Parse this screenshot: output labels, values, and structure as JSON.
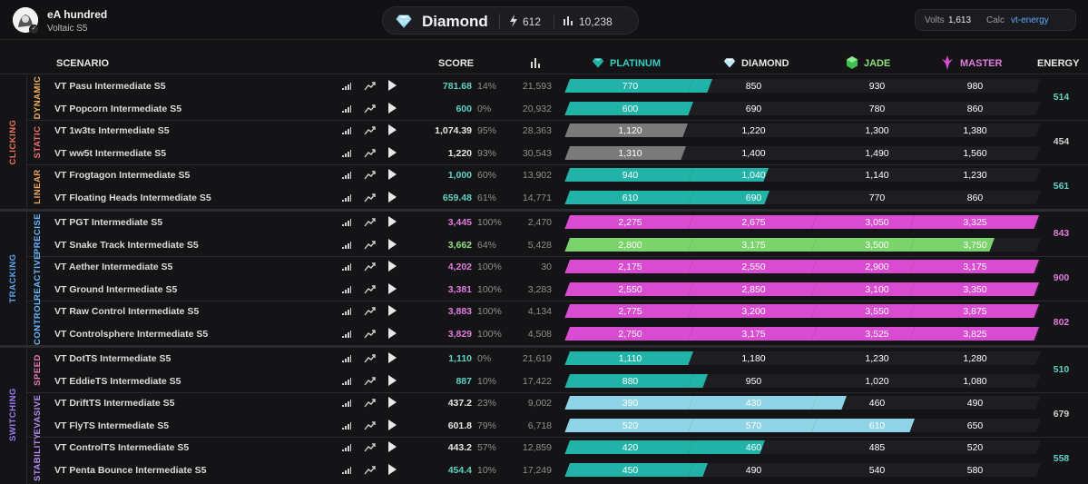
{
  "user": {
    "name": "eA hundred",
    "subtitle": "Voltaic S5"
  },
  "rank": {
    "name": "Diamond",
    "energy": "612",
    "score": "10,238"
  },
  "volts": {
    "label": "Volts",
    "value": "1,613",
    "calc_label": "Calc",
    "calc_value": "vt-energy"
  },
  "headers": {
    "scenario": "SCENARIO",
    "score": "SCORE",
    "platinum": "PLATINUM",
    "diamond": "DIAMOND",
    "jade": "JADE",
    "master": "MASTER",
    "energy": "ENERGY"
  },
  "colors": {
    "platinum": "#22b3a8",
    "diamond": "#8fd4e6",
    "jade": "#7bd36b",
    "master": "#d94bd0",
    "clicking": "#e8705a",
    "tracking": "#5aa0e8",
    "switching": "#9a7cf0",
    "grey": "#7a7a7a"
  },
  "categories": [
    {
      "name": "CLICKING",
      "color": "#e8705a",
      "subs": [
        {
          "name": "DYNAMIC",
          "color": "#f0b05a",
          "energy": "514",
          "energy_color": "#5ed1c4"
        },
        {
          "name": "STATIC",
          "color": "#ef6e6e",
          "energy": "454",
          "energy_color": "#cfcfcf"
        },
        {
          "name": "LINEAR",
          "color": "#f0a45a",
          "energy": "561",
          "energy_color": "#5ed1c4"
        }
      ]
    },
    {
      "name": "TRACKING",
      "color": "#5aa0e8",
      "subs": [
        {
          "name": "PRECISE",
          "color": "#66b8ff",
          "energy": "843",
          "energy_color": "#e27ae0"
        },
        {
          "name": "REACTIVE",
          "color": "#66b8ff",
          "energy": "900",
          "energy_color": "#e27ae0"
        },
        {
          "name": "CONTROL",
          "color": "#66b8ff",
          "energy": "802",
          "energy_color": "#e27ae0"
        }
      ]
    },
    {
      "name": "SWITCHING",
      "color": "#9a7cf0",
      "subs": [
        {
          "name": "SPEED",
          "color": "#e77ab5",
          "energy": "510",
          "energy_color": "#5ed1c4"
        },
        {
          "name": "EVASIVE",
          "color": "#b48cf0",
          "energy": "679",
          "energy_color": "#cfcfcf"
        },
        {
          "name": "STABILITY",
          "color": "#b48cf0",
          "energy": "558",
          "energy_color": "#5ed1c4"
        }
      ]
    }
  ],
  "rows": [
    {
      "name": "VT Pasu Intermediate S5",
      "score": "781.68",
      "pct": "14%",
      "count": "21,593",
      "score_color": "#5ed1c4",
      "fill": 1.14,
      "fill_color": "#22b3a8",
      "th": [
        "770",
        "850",
        "930",
        "980"
      ]
    },
    {
      "name": "VT Popcorn Intermediate S5",
      "score": "600",
      "pct": "0%",
      "count": "20,932",
      "score_color": "#5ed1c4",
      "fill": 1.0,
      "fill_color": "#22b3a8",
      "th": [
        "600",
        "690",
        "780",
        "860"
      ]
    },
    {
      "name": "VT 1w3ts Intermediate S5",
      "score": "1,074.39",
      "pct": "95%",
      "count": "28,363",
      "score_color": "#e6e6e6",
      "fill": 0.95,
      "fill_color": "#7a7a7a",
      "th": [
        "1,120",
        "1,220",
        "1,300",
        "1,380"
      ]
    },
    {
      "name": "VT ww5t Intermediate S5",
      "score": "1,220",
      "pct": "93%",
      "count": "30,543",
      "score_color": "#e6e6e6",
      "fill": 0.93,
      "fill_color": "#7a7a7a",
      "th": [
        "1,310",
        "1,400",
        "1,490",
        "1,560"
      ]
    },
    {
      "name": "VT Frogtagon Intermediate S5",
      "score": "1,000",
      "pct": "60%",
      "count": "13,902",
      "score_color": "#5ed1c4",
      "fill": 1.6,
      "fill_color": "#22b3a8",
      "th": [
        "940",
        "1,040",
        "1,140",
        "1,230"
      ]
    },
    {
      "name": "VT Floating Heads Intermediate S5",
      "score": "659.48",
      "pct": "61%",
      "count": "14,771",
      "score_color": "#5ed1c4",
      "fill": 1.61,
      "fill_color": "#22b3a8",
      "th": [
        "610",
        "690",
        "770",
        "860"
      ]
    },
    {
      "name": "VT PGT Intermediate S5",
      "score": "3,445",
      "pct": "100%",
      "count": "2,470",
      "score_color": "#e27ae0",
      "fill": 4.0,
      "fill_color": "#d94bd0",
      "th": [
        "2,275",
        "2,675",
        "3,050",
        "3,325"
      ]
    },
    {
      "name": "VT Snake Track Intermediate S5",
      "score": "3,662",
      "pct": "64%",
      "count": "5,428",
      "score_color": "#8fe07e",
      "fill": 3.64,
      "fill_color": "#7bd36b",
      "th": [
        "2,800",
        "3,175",
        "3,500",
        "3,750"
      ]
    },
    {
      "name": "VT Aether Intermediate S5",
      "score": "4,202",
      "pct": "100%",
      "count": "30",
      "score_color": "#e27ae0",
      "fill": 4.0,
      "fill_color": "#d94bd0",
      "th": [
        "2,175",
        "2,550",
        "2,900",
        "3,175"
      ]
    },
    {
      "name": "VT Ground Intermediate S5",
      "score": "3,381",
      "pct": "100%",
      "count": "3,283",
      "score_color": "#e27ae0",
      "fill": 4.0,
      "fill_color": "#d94bd0",
      "th": [
        "2,550",
        "2,850",
        "3,100",
        "3,350"
      ]
    },
    {
      "name": "VT Raw Control Intermediate S5",
      "score": "3,883",
      "pct": "100%",
      "count": "4,134",
      "score_color": "#e27ae0",
      "fill": 4.0,
      "fill_color": "#d94bd0",
      "th": [
        "2,775",
        "3,200",
        "3,550",
        "3,875"
      ]
    },
    {
      "name": "VT Controlsphere Intermediate S5",
      "score": "3,829",
      "pct": "100%",
      "count": "4,508",
      "score_color": "#e27ae0",
      "fill": 4.0,
      "fill_color": "#d94bd0",
      "th": [
        "2,750",
        "3,175",
        "3,525",
        "3,825"
      ]
    },
    {
      "name": "VT DotTS Intermediate S5",
      "score": "1,110",
      "pct": "0%",
      "count": "21,619",
      "score_color": "#5ed1c4",
      "fill": 1.0,
      "fill_color": "#22b3a8",
      "th": [
        "1,110",
        "1,180",
        "1,230",
        "1,280"
      ]
    },
    {
      "name": "VT EddieTS Intermediate S5",
      "score": "887",
      "pct": "10%",
      "count": "17,422",
      "score_color": "#5ed1c4",
      "fill": 1.1,
      "fill_color": "#22b3a8",
      "th": [
        "880",
        "950",
        "1,020",
        "1,080"
      ]
    },
    {
      "name": "VT DriftTS Intermediate S5",
      "score": "437.2",
      "pct": "23%",
      "count": "9,002",
      "score_color": "#e6e6e6",
      "fill": 2.23,
      "fill_color": "#8fd4e6",
      "th": [
        "390",
        "430",
        "460",
        "490"
      ]
    },
    {
      "name": "VT FlyTS Intermediate S5",
      "score": "601.8",
      "pct": "79%",
      "count": "6,718",
      "score_color": "#e6e6e6",
      "fill": 2.79,
      "fill_color": "#8fd4e6",
      "th": [
        "520",
        "570",
        "610",
        "650"
      ]
    },
    {
      "name": "VT ControlTS Intermediate S5",
      "score": "443.2",
      "pct": "57%",
      "count": "12,859",
      "score_color": "#e6e6e6",
      "fill": 1.57,
      "fill_color": "#22b3a8",
      "th": [
        "420",
        "460",
        "485",
        "520"
      ]
    },
    {
      "name": "VT Penta Bounce Intermediate S5",
      "score": "454.4",
      "pct": "10%",
      "count": "17,249",
      "score_color": "#5ed1c4",
      "fill": 1.1,
      "fill_color": "#22b3a8",
      "th": [
        "450",
        "490",
        "540",
        "580"
      ]
    }
  ]
}
